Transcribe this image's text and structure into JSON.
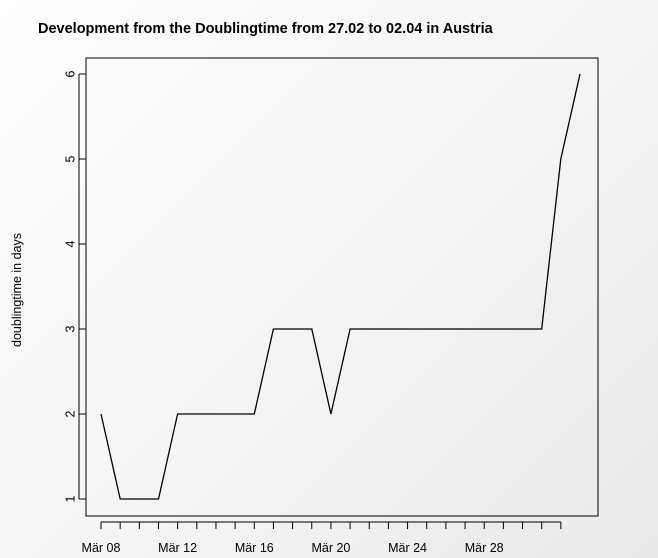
{
  "chart_data": {
    "type": "line",
    "title": "Development from the Doublingtime from 27.02 to 02.04 in Austria",
    "xlabel": "",
    "ylabel": "doublingtime in days",
    "x_tick_labels": [
      "Mär 08",
      "Mär 12",
      "Mär 16",
      "Mär 20",
      "Mär 24",
      "Mär 28"
    ],
    "x_tick_dates": [
      "2020-03-08",
      "2020-03-12",
      "2020-03-16",
      "2020-03-20",
      "2020-03-24",
      "2020-03-28"
    ],
    "y_ticks": [
      1,
      2,
      3,
      4,
      5,
      6
    ],
    "ylim": [
      1,
      6
    ],
    "xlim": [
      "2020-03-08",
      "2020-04-02"
    ],
    "grid": false,
    "series": [
      {
        "x": [
          "2020-03-08",
          "2020-03-09",
          "2020-03-10",
          "2020-03-11",
          "2020-03-12",
          "2020-03-13",
          "2020-03-14",
          "2020-03-15",
          "2020-03-16",
          "2020-03-17",
          "2020-03-18",
          "2020-03-19",
          "2020-03-20",
          "2020-03-21",
          "2020-03-22",
          "2020-03-23",
          "2020-03-24",
          "2020-03-25",
          "2020-03-26",
          "2020-03-27",
          "2020-03-28",
          "2020-03-29",
          "2020-03-30",
          "2020-03-31",
          "2020-04-01",
          "2020-04-02"
        ],
        "y": [
          2,
          1,
          1,
          1,
          2,
          2,
          2,
          2,
          2,
          3,
          3,
          3,
          2,
          3,
          3,
          3,
          3,
          3,
          3,
          3,
          3,
          3,
          3,
          3,
          5,
          6
        ],
        "color": "#000000"
      }
    ]
  }
}
